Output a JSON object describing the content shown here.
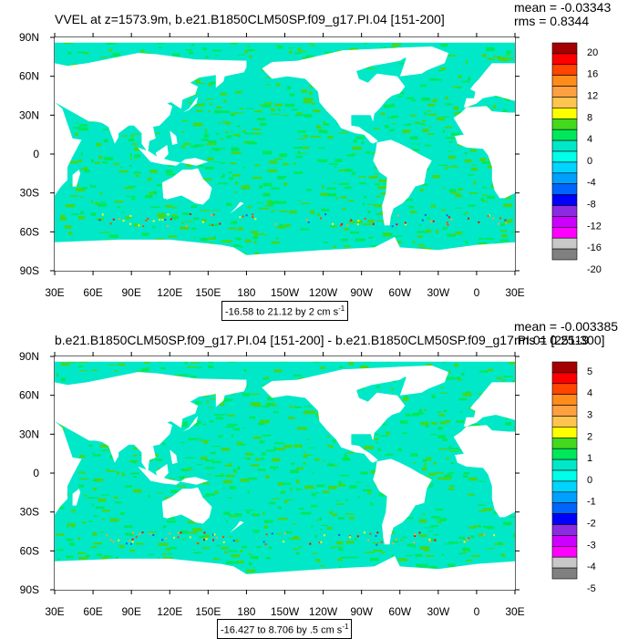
{
  "colors": {
    "ocean_cyan": "#00e8c8",
    "land": "#ffffff",
    "frame": "#000000"
  },
  "chart_data": [
    {
      "type": "heatmap",
      "title": "VVEL at z=1573.9m, b.e21.B1850CLM50SP.f09_g17.PI.04 [151-200]",
      "stats": {
        "mean": "mean = -0.03343",
        "rms": "rms = 0.8344"
      },
      "caption": {
        "text": "-16.58 to 21.12 by 2 cm s",
        "sup": "-1"
      },
      "x_ticks": [
        "30E",
        "60E",
        "90E",
        "120E",
        "150E",
        "180",
        "150W",
        "120W",
        "90W",
        "60W",
        "30W",
        "0",
        "30E"
      ],
      "y_ticks": [
        "90N",
        "60N",
        "30N",
        "0",
        "30S",
        "60S",
        "90S"
      ],
      "colorbar": {
        "labels": [
          "20",
          "16",
          "12",
          "8",
          "4",
          "0",
          "-4",
          "-8",
          "-12",
          "-16",
          "-20"
        ],
        "colors": [
          "#a50000",
          "#ff0000",
          "#ff4500",
          "#ff8c1a",
          "#ffa040",
          "#ffc450",
          "#ffff00",
          "#44d81e",
          "#00e85a",
          "#00e8c8",
          "#00ffe8",
          "#00d4ff",
          "#00a0ff",
          "#0064ff",
          "#0000ff",
          "#8a2be2",
          "#cc00ff",
          "#ff00ff",
          "#c8c8c8",
          "#808080"
        ]
      }
    },
    {
      "type": "heatmap",
      "title": "b.e21.B1850CLM50SP.f09_g17.PI.04 [151-200] - b.e21.B1850CLM50SP.f09_g17.PI.01 [251-300]",
      "stats": {
        "mean": "mean = -0.003385",
        "rms": "rms = 0.2519"
      },
      "caption": {
        "text": "-16.427 to 8.706 by .5 cm s",
        "sup": "-1"
      },
      "x_ticks": [
        "30E",
        "60E",
        "90E",
        "120E",
        "150E",
        "180",
        "150W",
        "120W",
        "90W",
        "60W",
        "30W",
        "0",
        "30E"
      ],
      "y_ticks": [
        "90N",
        "60N",
        "30N",
        "0",
        "30S",
        "60S",
        "90S"
      ],
      "colorbar": {
        "labels": [
          "5",
          "4",
          "3",
          "2",
          "1",
          "0",
          "-1",
          "-2",
          "-3",
          "-4",
          "-5"
        ],
        "colors": [
          "#a50000",
          "#ff0000",
          "#ff4500",
          "#ff8c1a",
          "#ffa040",
          "#ffc450",
          "#ffff00",
          "#44d81e",
          "#00e85a",
          "#00e8c8",
          "#00ffe8",
          "#00d4ff",
          "#00a0ff",
          "#0064ff",
          "#0000ff",
          "#8a2be2",
          "#cc00ff",
          "#ff00ff",
          "#c8c8c8",
          "#808080"
        ]
      }
    }
  ]
}
